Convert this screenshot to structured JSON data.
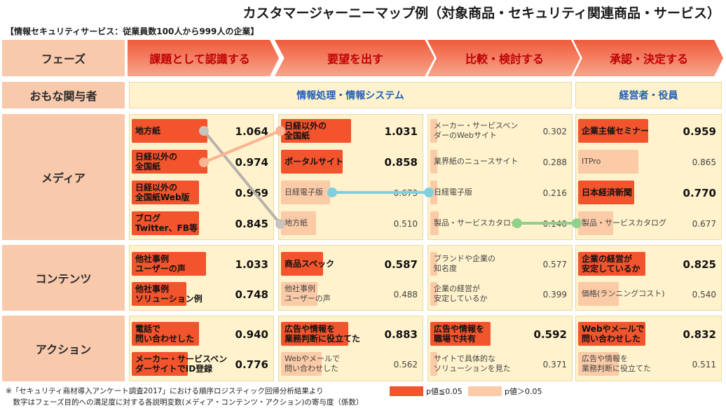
{
  "title": "カスタマージャーニーマップ例（対象商品・セキュリティ関連商品・サービス）",
  "subtitle": "【情報セキュリティサービス：従業員数100人から999人の企業】",
  "row_labels": {
    "phase": "フェーズ",
    "stakeholder": "おもな関与者",
    "media": "メディア",
    "contents": "コンテンツ",
    "action": "アクション"
  },
  "phases": [
    "課題として認識する",
    "要望を出す",
    "比較・検討する",
    "承認・決定する"
  ],
  "stakeholders": {
    "it_dept": "情報処理・情報システム",
    "management": "経営者・役員"
  },
  "colors": {
    "significant": "#f2542d",
    "not_significant": "#fbcaa7"
  },
  "cells": {
    "media": [
      [
        {
          "label": "地方紙",
          "value": "1.064",
          "sig": true
        },
        {
          "label": "日経以外の\n全国紙",
          "value": "0.974",
          "sig": true
        },
        {
          "label": "日経以外の\n全国紙Web版",
          "value": "0.969",
          "sig": true
        },
        {
          "label": "ブログ\nTwitter、FB等",
          "value": "0.845",
          "sig": true
        }
      ],
      [
        {
          "label": "日経以外の\n全国紙",
          "value": "1.031",
          "sig": true
        },
        {
          "label": "ポータルサイト",
          "value": "0.858",
          "sig": true
        },
        {
          "label": "日経電子版",
          "value": "0.673",
          "sig": false
        },
        {
          "label": "地方紙",
          "value": "0.510",
          "sig": false
        }
      ],
      [
        {
          "label": "メーカー・サービスベン\nダーのWebサイト",
          "value": "0.302",
          "sig": false
        },
        {
          "label": "業界紙のニュースサイト",
          "value": "0.288",
          "sig": false
        },
        {
          "label": "日経電子版",
          "value": "0.216",
          "sig": false
        },
        {
          "label": "製品・サービスカタログ",
          "value": "0.140",
          "sig": false
        }
      ],
      [
        {
          "label": "企業主催セミナー",
          "value": "0.959",
          "sig": true
        },
        {
          "label": "ITPro",
          "value": "0.865",
          "sig": false
        },
        {
          "label": "日本経済新聞",
          "value": "0.770",
          "sig": true
        },
        {
          "label": "製品・サービスカタログ",
          "value": "0.677",
          "sig": false
        }
      ]
    ],
    "contents": [
      [
        {
          "label": "他社事例\nユーザーの声",
          "value": "1.033",
          "sig": true
        },
        {
          "label": "他社事例\nソリューション例",
          "value": "0.748",
          "sig": true
        }
      ],
      [
        {
          "label": "商品スペック",
          "value": "0.587",
          "sig": true
        },
        {
          "label": "他社事例\nユーザーの声",
          "value": "0.488",
          "sig": false
        }
      ],
      [
        {
          "label": "ブランドや企業の\n知名度",
          "value": "0.577",
          "sig": false
        },
        {
          "label": "企業の経営が\n安定しているか",
          "value": "0.399",
          "sig": false
        }
      ],
      [
        {
          "label": "企業の経営が\n安定しているか",
          "value": "0.825",
          "sig": true
        },
        {
          "label": "価格(ランニングコスト)",
          "value": "0.540",
          "sig": false
        }
      ]
    ],
    "action": [
      [
        {
          "label": "電話で\n問い合わせした",
          "value": "0.940",
          "sig": true
        },
        {
          "label": "メーカー・サービスベン\nダーサイトでID登録",
          "value": "0.776",
          "sig": true
        }
      ],
      [
        {
          "label": "広告や情報を\n業務判断に役立てた",
          "value": "0.883",
          "sig": true
        },
        {
          "label": "Webやメールで\n問い合わせした",
          "value": "0.562",
          "sig": false
        }
      ],
      [
        {
          "label": "広告や情報を\n職場で共有",
          "value": "0.592",
          "sig": true
        },
        {
          "label": "サイトで具体的な\nソリューションを見た",
          "value": "0.371",
          "sig": false
        }
      ],
      [
        {
          "label": "Webやメールで\n問い合わせした",
          "value": "0.832",
          "sig": true
        },
        {
          "label": "広告や情報を\n業務判断に役立てた",
          "value": "0.511",
          "sig": false
        }
      ]
    ]
  },
  "legend": {
    "significant": "p値≦0.05",
    "not_significant": "p値＞0.05"
  },
  "notes": [
    "※「セキュリティ商材導入アンケート調査2017」における順序ロジスティック回帰分析結果より",
    "　数字はフェーズ目的への満足度に対する各説明変数(メディア・コンテンツ・アクション)の寄与度（係数）"
  ]
}
